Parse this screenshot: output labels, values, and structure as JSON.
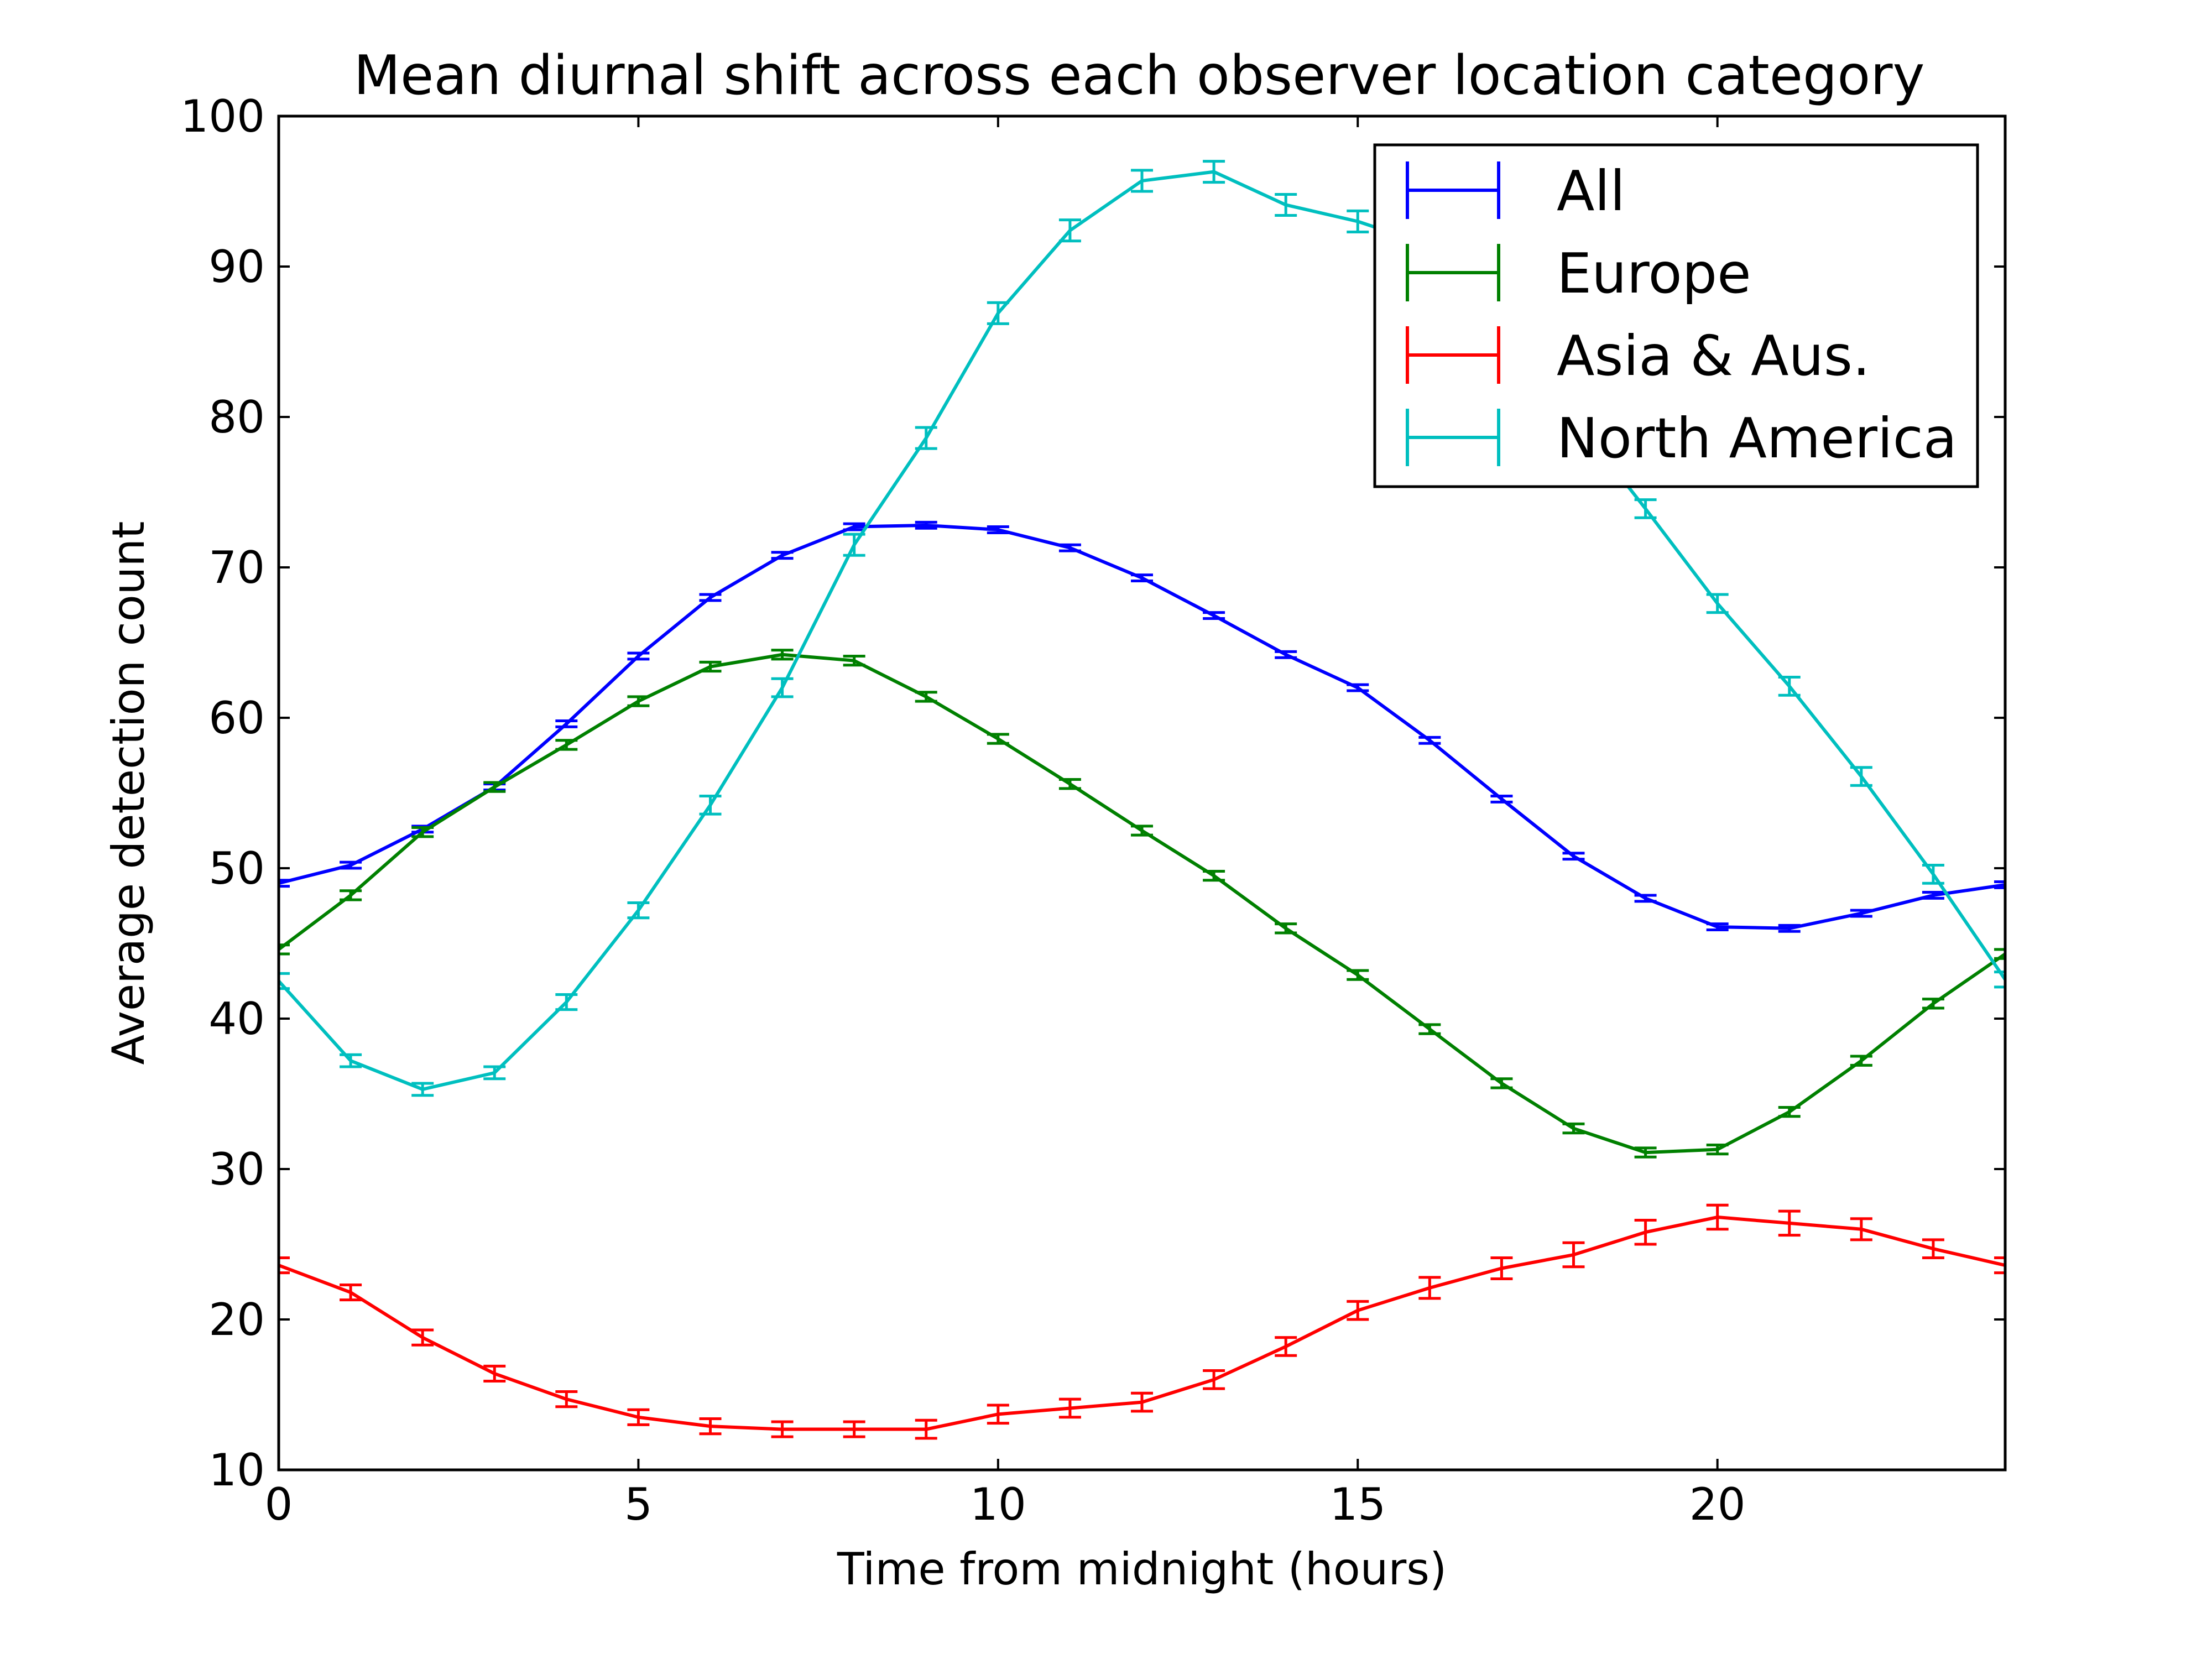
{
  "chart_data": {
    "type": "line",
    "title": "Mean diurnal shift across each observer location category",
    "xlabel": "Time from midnight (hours)",
    "ylabel": "Average detection count",
    "xlim": [
      0,
      24
    ],
    "ylim": [
      10,
      100
    ],
    "xticks": [
      0,
      5,
      10,
      15,
      20
    ],
    "yticks": [
      10,
      20,
      30,
      40,
      50,
      60,
      70,
      80,
      90,
      100
    ],
    "grid": false,
    "legend_position": "top-right",
    "x": [
      0,
      1,
      2,
      3,
      4,
      5,
      6,
      7,
      8,
      9,
      10,
      11,
      12,
      13,
      14,
      15,
      16,
      17,
      18,
      19,
      20,
      21,
      22,
      23,
      24
    ],
    "series": [
      {
        "name": "All",
        "color": "#0000ff",
        "values": [
          49.0,
          50.2,
          52.6,
          55.4,
          59.6,
          64.1,
          68.0,
          70.8,
          72.7,
          72.8,
          72.5,
          71.3,
          69.3,
          66.8,
          64.2,
          62.0,
          58.5,
          54.6,
          50.8,
          48.0,
          46.1,
          46.0,
          47.0,
          48.2,
          48.9
        ],
        "errors": [
          0.2,
          0.2,
          0.2,
          0.2,
          0.2,
          0.2,
          0.2,
          0.2,
          0.2,
          0.2,
          0.2,
          0.2,
          0.2,
          0.2,
          0.2,
          0.2,
          0.2,
          0.2,
          0.2,
          0.2,
          0.2,
          0.2,
          0.2,
          0.2,
          0.2
        ]
      },
      {
        "name": "Europe",
        "color": "#008000",
        "values": [
          44.6,
          48.2,
          52.4,
          55.4,
          58.2,
          61.1,
          63.4,
          64.2,
          63.8,
          61.4,
          58.6,
          55.6,
          52.5,
          49.5,
          46.0,
          42.9,
          39.3,
          35.7,
          32.7,
          31.1,
          31.3,
          33.8,
          37.2,
          41.0,
          44.3
        ],
        "errors": [
          0.3,
          0.3,
          0.3,
          0.3,
          0.3,
          0.3,
          0.3,
          0.3,
          0.3,
          0.3,
          0.3,
          0.3,
          0.3,
          0.3,
          0.3,
          0.3,
          0.3,
          0.3,
          0.3,
          0.3,
          0.3,
          0.3,
          0.3,
          0.3,
          0.3
        ]
      },
      {
        "name": "Asia & Aus.",
        "color": "#ff0000",
        "values": [
          23.6,
          21.8,
          18.8,
          16.4,
          14.7,
          13.5,
          12.9,
          12.7,
          12.7,
          12.7,
          13.7,
          14.1,
          14.5,
          16.0,
          18.2,
          20.6,
          22.1,
          23.4,
          24.3,
          25.8,
          26.8,
          26.4,
          26.0,
          24.7,
          23.6
        ],
        "errors": [
          0.5,
          0.5,
          0.5,
          0.5,
          0.5,
          0.5,
          0.5,
          0.5,
          0.5,
          0.6,
          0.6,
          0.6,
          0.6,
          0.6,
          0.6,
          0.6,
          0.7,
          0.7,
          0.8,
          0.8,
          0.8,
          0.8,
          0.7,
          0.6,
          0.5
        ]
      },
      {
        "name": "North America",
        "color": "#00bfbf",
        "values": [
          42.5,
          37.2,
          35.3,
          36.4,
          41.1,
          47.2,
          54.2,
          62.0,
          71.5,
          78.6,
          86.9,
          92.4,
          95.7,
          96.3,
          94.1,
          93.0,
          91.4,
          85.0,
          80.0,
          73.9,
          67.6,
          62.1,
          56.1,
          49.6,
          42.6
        ],
        "errors": [
          0.5,
          0.4,
          0.4,
          0.4,
          0.5,
          0.5,
          0.6,
          0.6,
          0.7,
          0.7,
          0.7,
          0.7,
          0.7,
          0.7,
          0.7,
          0.7,
          0.7,
          0.7,
          0.7,
          0.6,
          0.6,
          0.6,
          0.6,
          0.6,
          0.5
        ]
      }
    ]
  }
}
